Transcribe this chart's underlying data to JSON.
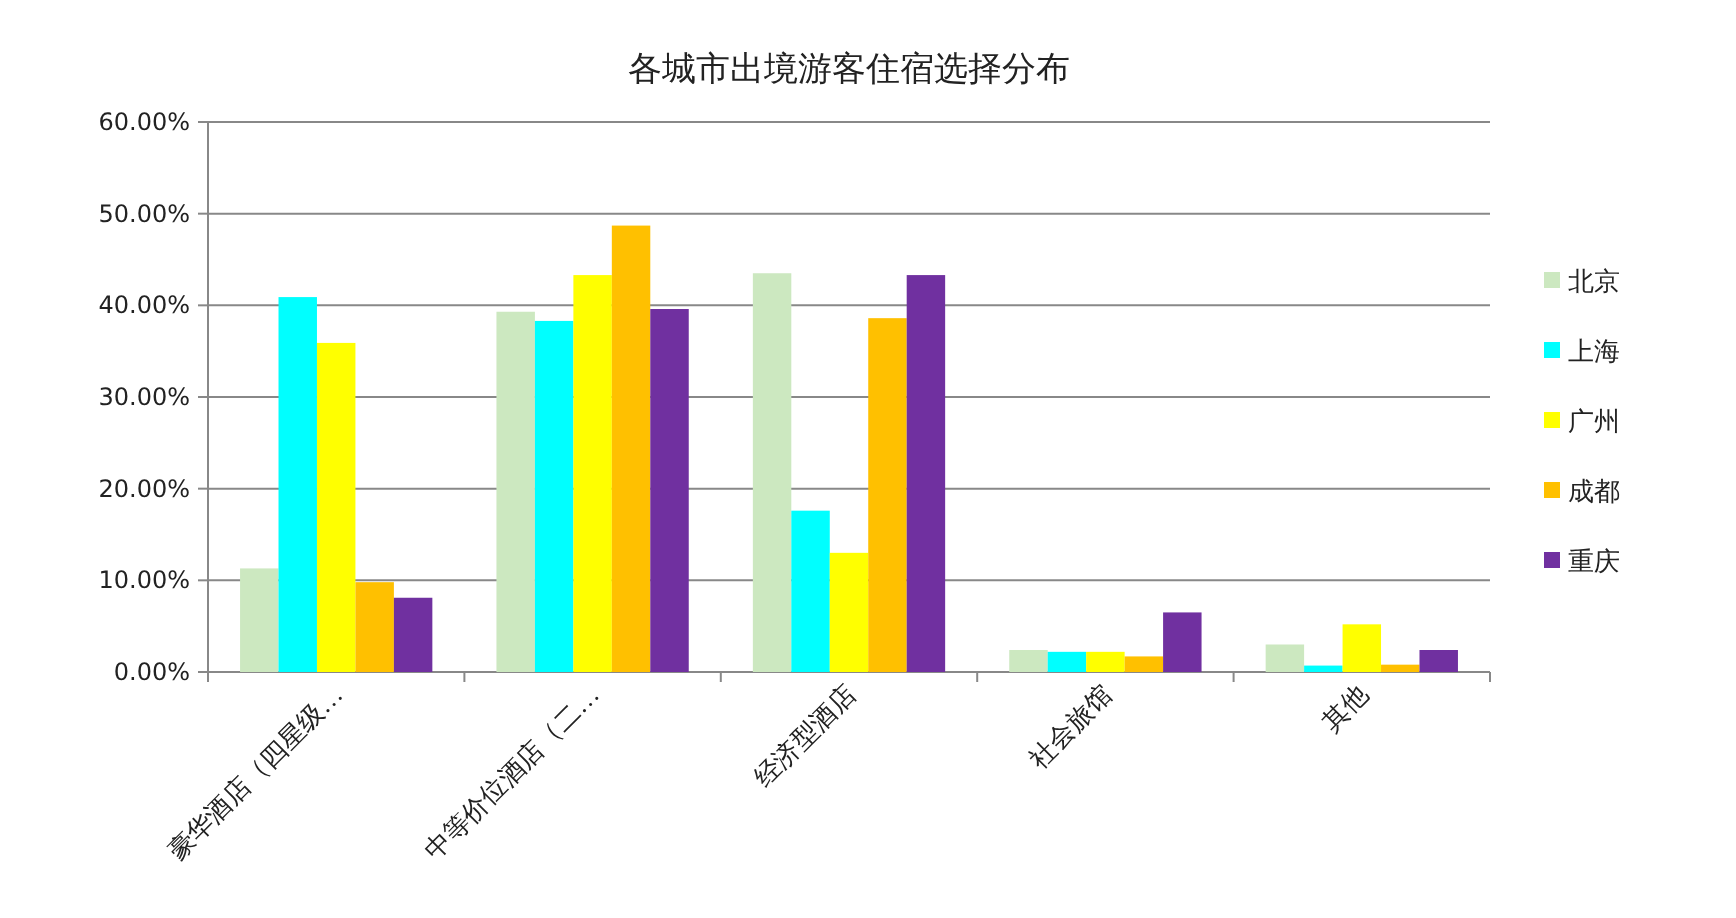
{
  "chart_data": {
    "type": "bar",
    "title": "各城市出境游客住宿选择分布",
    "categories": [
      "豪华酒店（四星级…",
      "中等价位酒店（二…",
      "经济型酒店",
      "社会旅馆",
      "其他"
    ],
    "series": [
      {
        "name": "北京",
        "color": "#cce8c0",
        "values": [
          11.3,
          39.3,
          43.5,
          2.4,
          3.0
        ]
      },
      {
        "name": "上海",
        "color": "#00ffff",
        "values": [
          40.9,
          38.3,
          17.6,
          2.2,
          0.7
        ]
      },
      {
        "name": "广州",
        "color": "#ffff00",
        "values": [
          35.9,
          43.3,
          13.0,
          2.2,
          5.2
        ]
      },
      {
        "name": "成都",
        "color": "#ffc000",
        "values": [
          9.8,
          48.7,
          38.6,
          1.7,
          0.8
        ]
      },
      {
        "name": "重庆",
        "color": "#7030a0",
        "values": [
          8.1,
          39.6,
          43.3,
          6.5,
          2.4
        ]
      }
    ],
    "ylim": [
      0,
      60
    ],
    "yticks": [
      {
        "value": 0,
        "label": "0.00%"
      },
      {
        "value": 10,
        "label": "10.00%"
      },
      {
        "value": 20,
        "label": "20.00%"
      },
      {
        "value": 30,
        "label": "30.00%"
      },
      {
        "value": 40,
        "label": "40.00%"
      },
      {
        "value": 50,
        "label": "50.00%"
      },
      {
        "value": 60,
        "label": "60.00%"
      }
    ],
    "grid": "y",
    "legend": "right"
  }
}
